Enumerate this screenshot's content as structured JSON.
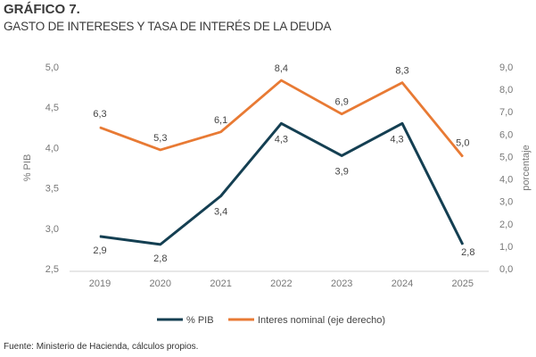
{
  "header": {
    "number": "GRÁFICO 7.",
    "title": "GASTO DE INTERESES Y TASA DE INTERÉS DE LA DEUDA"
  },
  "footer": {
    "source": "Fuente: Ministerio de Hacienda, cálculos propios."
  },
  "colors": {
    "pib": "#143f52",
    "interes": "#e87a34",
    "axis_text": "#777777",
    "label_text": "#444444"
  },
  "chart_data": {
    "type": "line",
    "categories": [
      "2019",
      "2020",
      "2021",
      "2022",
      "2023",
      "2024",
      "2025"
    ],
    "ylabel": "% PIB",
    "y2label": "porcentaje",
    "ylim": [
      2.5,
      5.0
    ],
    "y2lim": [
      0.0,
      9.0
    ],
    "yticks": [
      "2,5",
      "3,0",
      "3,5",
      "4,0",
      "4,5",
      "5,0"
    ],
    "y2ticks": [
      "0,0",
      "1,0",
      "2,0",
      "3,0",
      "4,0",
      "5,0",
      "6,0",
      "7,0",
      "8,0",
      "9,0"
    ],
    "grid": false,
    "legend_position": "bottom",
    "series": [
      {
        "name": "% PIB",
        "axis": "left",
        "values": [
          2.9,
          2.8,
          3.4,
          4.3,
          3.9,
          4.3,
          2.8
        ],
        "labels": [
          "2,9",
          "2,8",
          "3,4",
          "4,3",
          "3,9",
          "4,3",
          "2,8"
        ]
      },
      {
        "name": "Interes nominal (eje derecho)",
        "axis": "right",
        "values": [
          6.3,
          5.3,
          6.1,
          8.4,
          6.9,
          8.3,
          5.0
        ],
        "labels": [
          "6,3",
          "5,3",
          "6,1",
          "8,4",
          "6,9",
          "8,3",
          "5,0"
        ]
      }
    ]
  }
}
